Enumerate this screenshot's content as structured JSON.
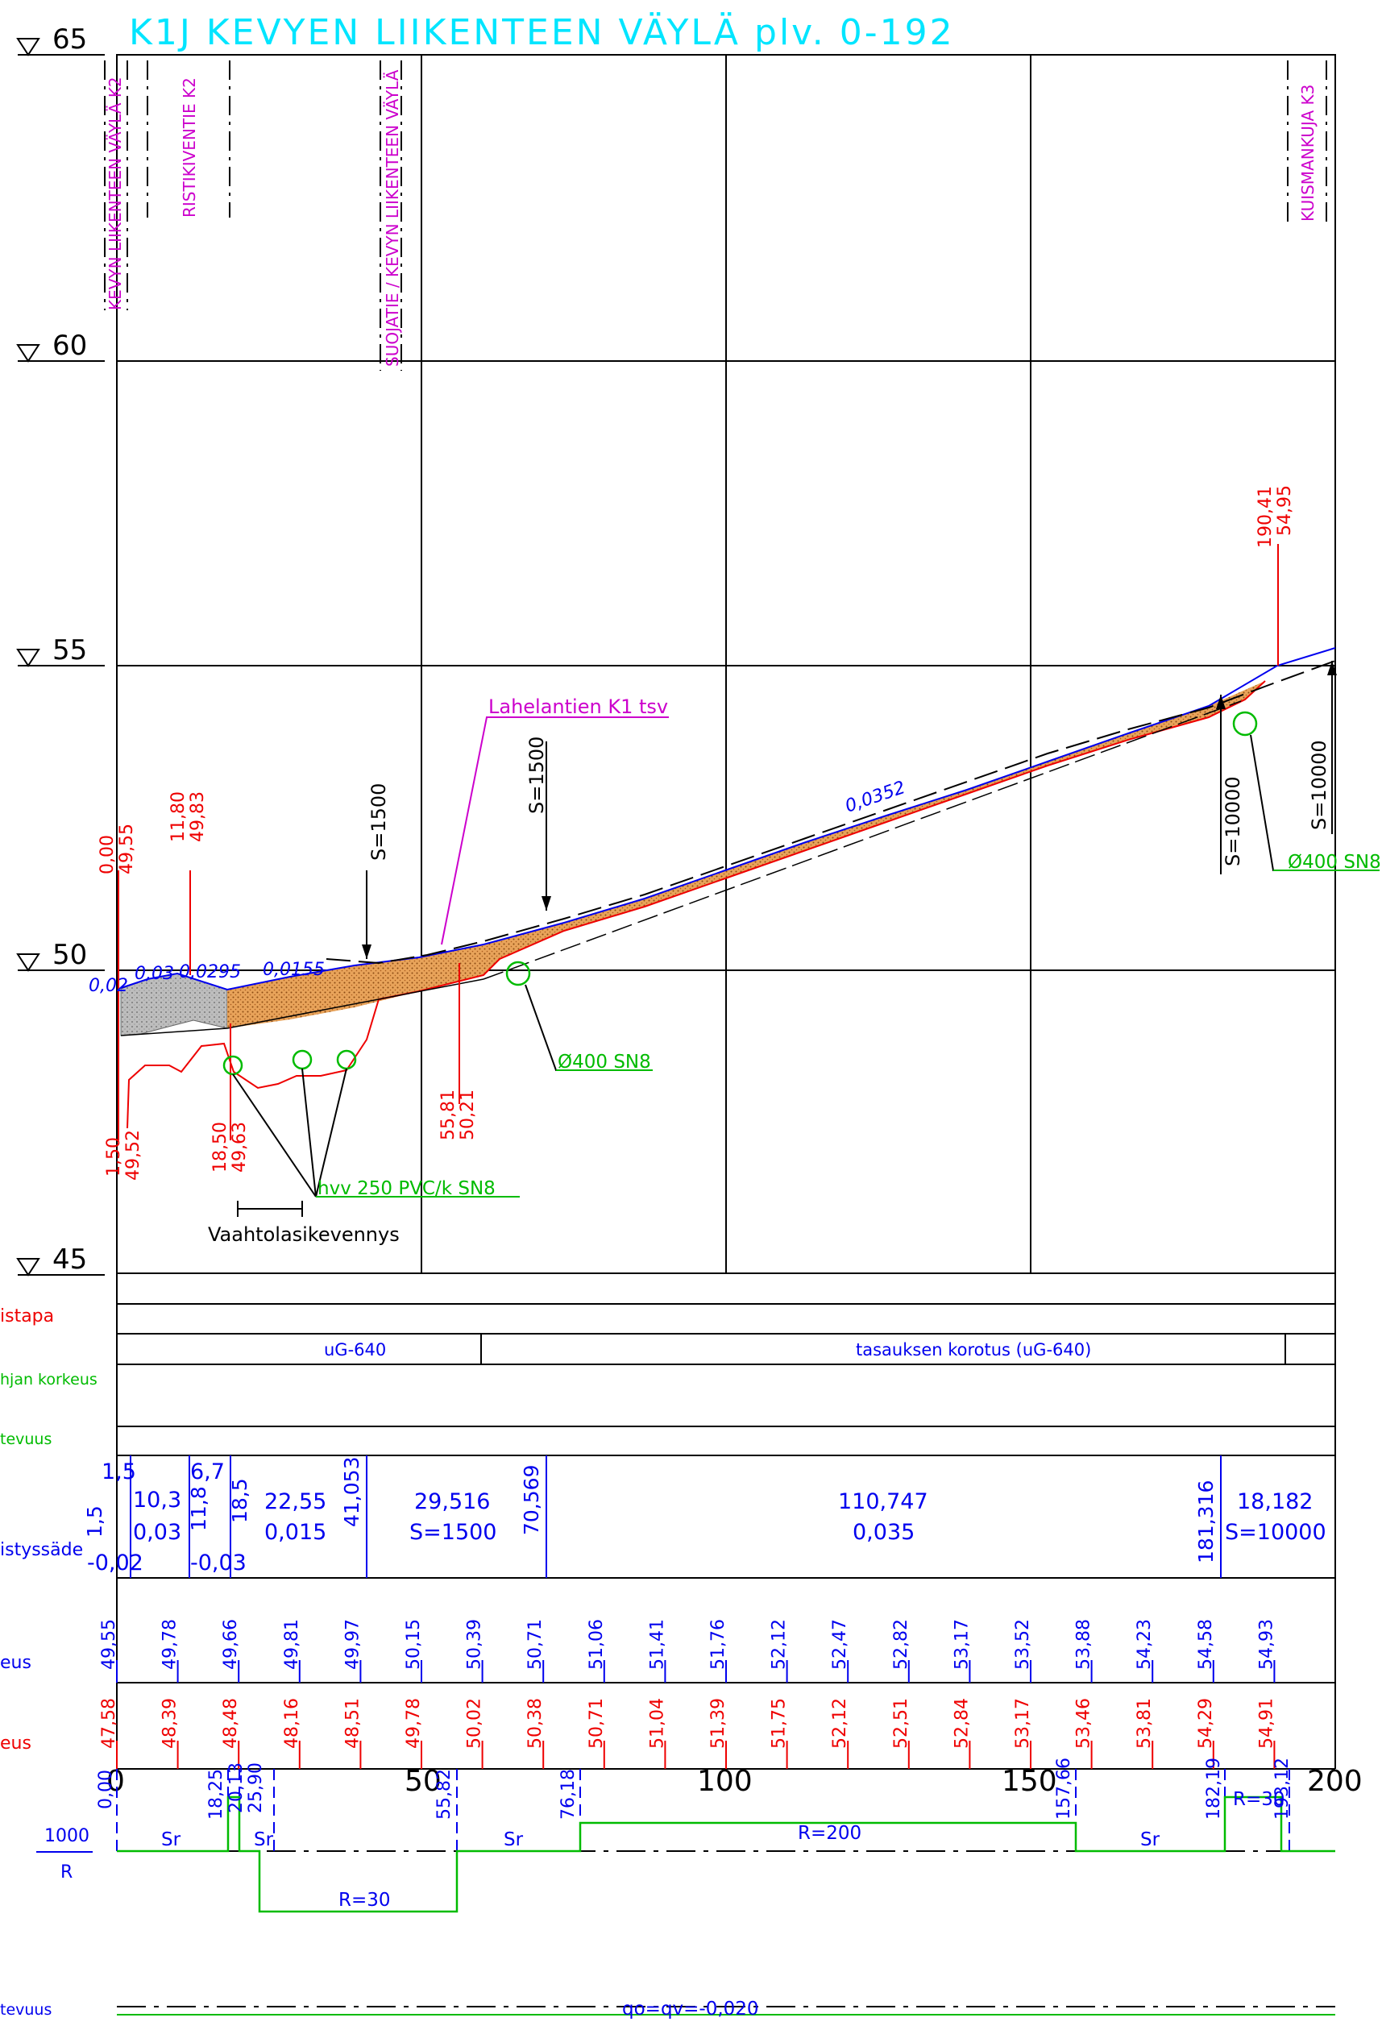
{
  "title": "K1J KEVYEN LIIKENTEEN VÄYLÄ plv. 0-192",
  "colors": {
    "title": "#00e5ff",
    "magenta": "#cc00cc",
    "red": "#ee0000",
    "blue": "#0000ee",
    "green": "#00bb00",
    "black": "#000000",
    "fill_brown": "#d9883c",
    "fill_grey": "#b9b9b9"
  },
  "elevation_labels": [
    "65",
    "60",
    "55",
    "50",
    "45"
  ],
  "crossings": [
    "KEVYN LIIKENTEEN VÄYLÄ K2",
    "RISTIKIVENTIE K2",
    "SUOJATIE / KEVYN LIIKENTEEN VÄYLÄ",
    "KUISMANKUJA K3"
  ],
  "profile_labels": {
    "start_sta": "0,00",
    "start_elev": "49,55",
    "p2_sta": "11,80",
    "p2_elev": "49,83",
    "end_sta": "190,41",
    "end_elev": "54,95",
    "low1_sta": "1,50",
    "low1_elev": "49,52",
    "low2_sta": "18,50",
    "low2_elev": "49,63",
    "low3_sta": "55,81",
    "low3_elev": "50,21",
    "slope_002": "0,02",
    "slope_003": "0,03",
    "slope_00295": "0,0295",
    "slope_00155": "0,0155",
    "slope_00352": "0,0352",
    "s1500_a": "S=1500",
    "s1500_b": "S=1500",
    "s10000_a": "S=10000",
    "s10000_b": "S=10000",
    "lahelantien": "Lahelantien K1 tsv",
    "pipe_400_a": "Ø400 SN8",
    "pipe_400_b": "Ø400 SN8",
    "hvv": "hvv 250 PVC/k SN8",
    "vaahto": "Vaahtolasikevennys"
  },
  "band_labels": {
    "rakennetapa": "istapa",
    "kaivon": "hjan korkeus",
    "kaltevuus": "tevuus",
    "pyoristys": "istyssäde",
    "tasaus": "eus",
    "maanpinta": "eus",
    "kaarre": "1000",
    "kaarre_r": "R",
    "sivukaltevuus": "tevuus"
  },
  "rakennetapa": [
    "uG-640",
    "tasauksen korotus (uG-640)"
  ],
  "tasaus_band": {
    "row1": [
      "1,5",
      "6,7",
      "10,3",
      "22,55",
      "29,516",
      "110,747",
      "18,182"
    ],
    "vertical": [
      "1,5",
      "11,8",
      "18,5",
      "41,053",
      "70,569",
      "181,316"
    ],
    "row2": [
      "0,03",
      "0,015",
      "S=1500",
      "0,035",
      "S=10000"
    ],
    "row3": [
      "-0,02",
      "-0,03"
    ]
  },
  "grade_elevations": [
    "49,55",
    "49,78",
    "49,66",
    "49,81",
    "49,97",
    "50,15",
    "50,39",
    "50,71",
    "51,06",
    "51,41",
    "51,76",
    "52,12",
    "52,47",
    "52,82",
    "53,17",
    "53,52",
    "53,88",
    "54,23",
    "54,58",
    "54,93"
  ],
  "ground_elevations": [
    "47,58",
    "48,39",
    "48,48",
    "48,16",
    "48,51",
    "49,78",
    "50,02",
    "50,38",
    "50,71",
    "51,04",
    "51,39",
    "51,75",
    "52,12",
    "52,51",
    "52,84",
    "53,17",
    "53,46",
    "53,81",
    "54,29",
    "54,91"
  ],
  "stations": [
    "0",
    "50",
    "100",
    "150",
    "200"
  ],
  "curve_stations": [
    "0,00",
    "18,25",
    "20,13",
    "25,90",
    "55,82",
    "76,18",
    "157,66",
    "182,19",
    "193,12"
  ],
  "curve_labels": [
    "Sr",
    "Sr",
    "Sr",
    "Sr",
    "R=30",
    "R=200",
    "R=30"
  ],
  "cross_slope": "qo=qv=-0,020"
}
